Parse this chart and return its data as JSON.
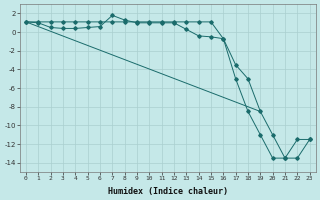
{
  "xlabel": "Humidex (Indice chaleur)",
  "bg_color": "#c5e8e8",
  "grid_color": "#aacfcf",
  "line_color": "#1a6b6b",
  "xlim": [
    -0.5,
    23.5
  ],
  "ylim": [
    -15,
    3
  ],
  "yticks": [
    2,
    0,
    -2,
    -4,
    -6,
    -8,
    -10,
    -12,
    -14
  ],
  "xticks": [
    0,
    1,
    2,
    3,
    4,
    5,
    6,
    7,
    8,
    9,
    10,
    11,
    12,
    13,
    14,
    15,
    16,
    17,
    18,
    19,
    20,
    21,
    22,
    23
  ],
  "line1_x": [
    0,
    1,
    2,
    3,
    4,
    5,
    6,
    7,
    8,
    9,
    10,
    11,
    12,
    13,
    14,
    15,
    16,
    17,
    18,
    19,
    20,
    21,
    22,
    23
  ],
  "line1_y": [
    1.1,
    1.0,
    0.5,
    0.4,
    0.4,
    0.5,
    0.6,
    1.8,
    1.3,
    1.0,
    1.0,
    1.0,
    1.0,
    0.3,
    -0.4,
    -0.5,
    -0.7,
    -3.5,
    -5.0,
    -8.5,
    -11.0,
    -13.5,
    -13.5,
    -11.5
  ],
  "line2_x": [
    0,
    1,
    2,
    3,
    4,
    5,
    6,
    7,
    8,
    9,
    10,
    11,
    12,
    13,
    14,
    15,
    16,
    17,
    18,
    19,
    20,
    21,
    22,
    23
  ],
  "line2_y": [
    1.1,
    1.1,
    1.1,
    1.1,
    1.1,
    1.1,
    1.1,
    1.1,
    1.1,
    1.1,
    1.1,
    1.1,
    1.1,
    1.1,
    1.1,
    1.1,
    -0.7,
    -5.0,
    -8.5,
    -11.0,
    -13.5,
    -13.5,
    -11.5,
    -11.5
  ],
  "line3_x": [
    0,
    19
  ],
  "line3_y": [
    1.1,
    -8.5
  ]
}
